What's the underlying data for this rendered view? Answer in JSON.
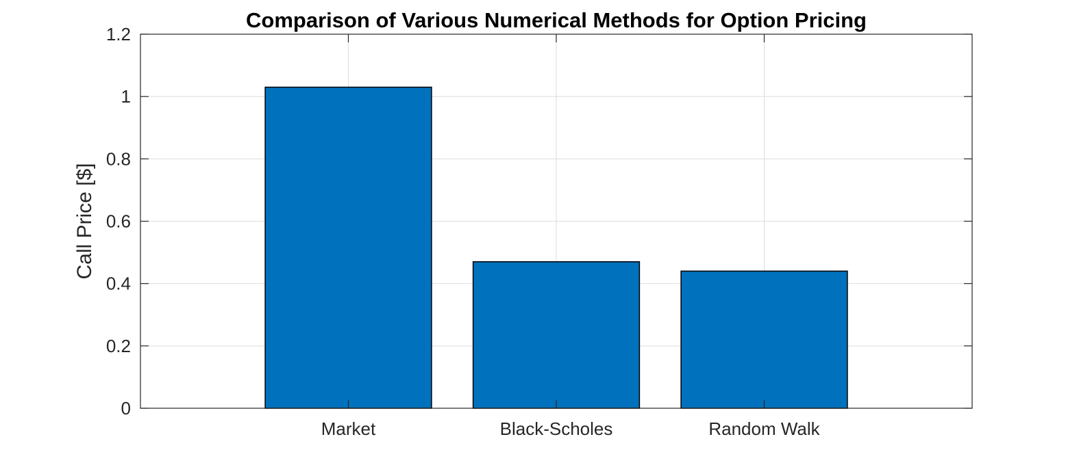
{
  "chart_data": {
    "type": "bar",
    "title": "Comparison of Various Numerical Methods for Option Pricing",
    "xlabel": "",
    "ylabel": "Call Price [$]",
    "categories": [
      "Market",
      "Black-Scholes",
      "Random Walk"
    ],
    "values": [
      1.03,
      0.47,
      0.44
    ],
    "xlim": [
      0,
      4
    ],
    "ylim": [
      0,
      1.2
    ],
    "yticks": [
      0,
      0.2,
      0.4,
      0.6,
      0.8,
      1,
      1.2
    ],
    "ytick_labels": [
      "0",
      "0.2",
      "0.4",
      "0.6",
      "0.8",
      "1",
      "1.2"
    ],
    "grid": true,
    "box": true,
    "legend": "none",
    "colors": {
      "bar_fill": "#0072BD",
      "bar_edge": "#000000",
      "grid": "#DCDCDC",
      "axes": "#262626"
    }
  }
}
